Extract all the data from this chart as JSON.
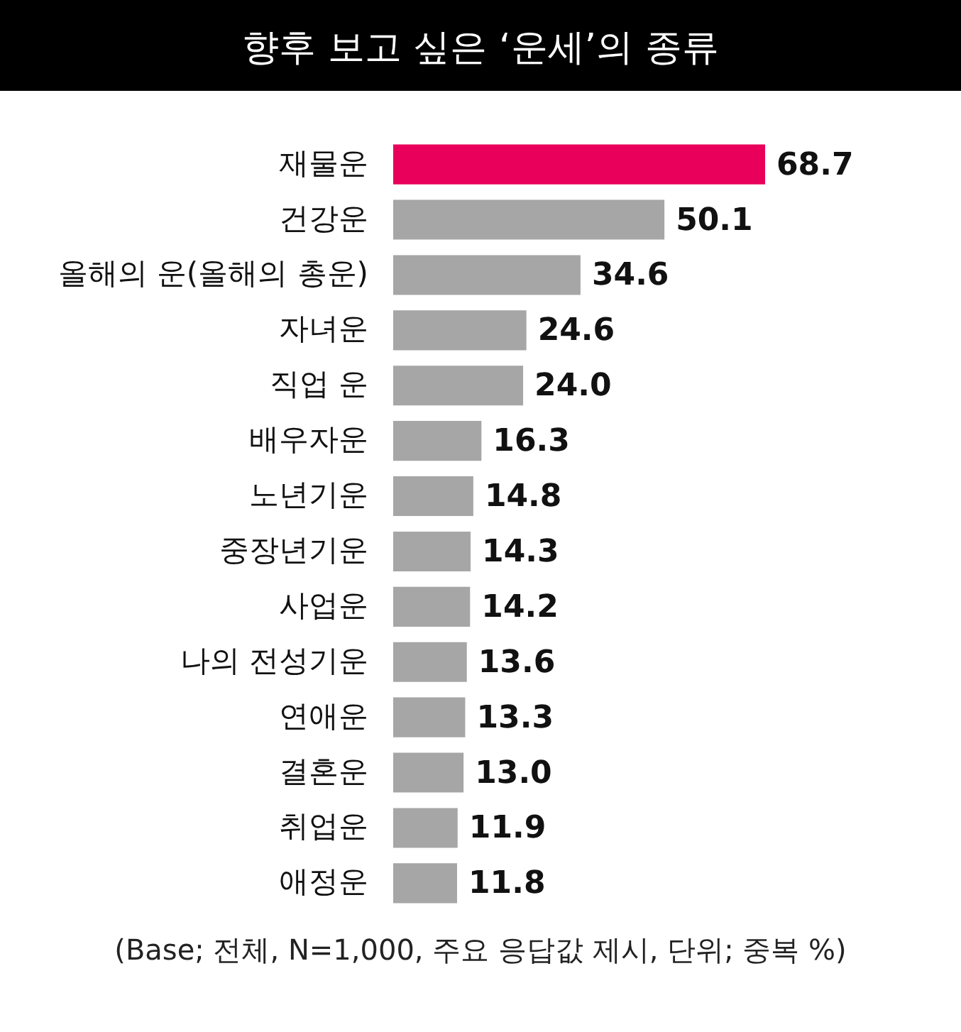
{
  "chart_data": {
    "type": "bar",
    "orientation": "horizontal",
    "title": "향후 보고 싶은 ‘운세’의 종류",
    "categories": [
      "재물운",
      "건강운",
      "올해의 운(올해의 총운)",
      "자녀운",
      "직업 운",
      "배우자운",
      "노년기운",
      "중장년기운",
      "사업운",
      "나의 전성기운",
      "연애운",
      "결혼운",
      "취업운",
      "애정운"
    ],
    "values": [
      68.7,
      50.1,
      34.6,
      24.6,
      24.0,
      16.3,
      14.8,
      14.3,
      14.2,
      13.6,
      13.3,
      13.0,
      11.9,
      11.8
    ],
    "value_labels": [
      "68.7",
      "50.1",
      "34.6",
      "24.6",
      "24.0",
      "16.3",
      "14.8",
      "14.3",
      "14.2",
      "13.6",
      "13.3",
      "13.0",
      "11.9",
      "11.8"
    ],
    "colors": [
      "#e8005a",
      "#a6a6a6",
      "#a6a6a6",
      "#a6a6a6",
      "#a6a6a6",
      "#a6a6a6",
      "#a6a6a6",
      "#a6a6a6",
      "#a6a6a6",
      "#a6a6a6",
      "#a6a6a6",
      "#a6a6a6",
      "#a6a6a6",
      "#a6a6a6"
    ],
    "annotations": [
      "(Base; 전체, N=1,000, 주요 응답값 제시, 단위; 중복 %)"
    ]
  }
}
